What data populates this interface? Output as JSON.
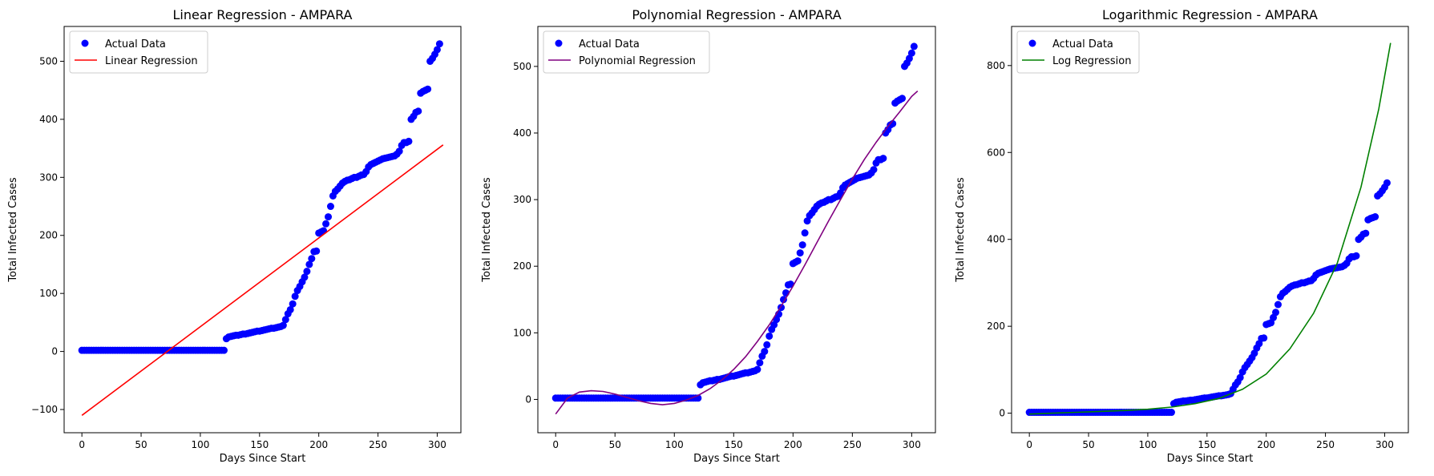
{
  "chart_data": [
    {
      "type": "scatter",
      "title": "Linear Regression - AMPARA",
      "xlabel": "Days Since Start",
      "ylabel": "Total Infected Cases",
      "xlim": [
        -15,
        320
      ],
      "ylim": [
        -140,
        560
      ],
      "xticks": [
        0,
        50,
        100,
        150,
        200,
        250,
        300
      ],
      "yticks": [
        -100,
        0,
        100,
        200,
        300,
        400,
        500
      ],
      "grid": false,
      "legend_placement": "top-left",
      "legend": [
        "Actual Data",
        "Linear Regression"
      ],
      "scatter_color": "#0000ff",
      "fit": {
        "kind": "linear",
        "color": "#ff0000",
        "points": [
          [
            0,
            -110
          ],
          [
            305,
            356
          ]
        ]
      }
    },
    {
      "type": "scatter",
      "title": "Polynomial Regression - AMPARA",
      "xlabel": "Days Since Start",
      "ylabel": "Total Infected Cases",
      "xlim": [
        -15,
        320
      ],
      "ylim": [
        -50,
        560
      ],
      "xticks": [
        0,
        50,
        100,
        150,
        200,
        250,
        300
      ],
      "yticks": [
        0,
        100,
        200,
        300,
        400,
        500
      ],
      "grid": false,
      "legend_placement": "top-left",
      "legend": [
        "Actual Data",
        "Polynomial Regression"
      ],
      "scatter_color": "#0000ff",
      "fit": {
        "kind": "polynomial",
        "color": "#800080",
        "points": [
          [
            0,
            -22
          ],
          [
            10,
            2
          ],
          [
            20,
            11
          ],
          [
            30,
            13
          ],
          [
            40,
            12
          ],
          [
            50,
            8
          ],
          [
            60,
            3
          ],
          [
            70,
            -2
          ],
          [
            80,
            -6
          ],
          [
            90,
            -8
          ],
          [
            100,
            -6
          ],
          [
            110,
            -1
          ],
          [
            120,
            6
          ],
          [
            130,
            16
          ],
          [
            140,
            29
          ],
          [
            150,
            45
          ],
          [
            160,
            64
          ],
          [
            170,
            87
          ],
          [
            180,
            112
          ],
          [
            190,
            140
          ],
          [
            200,
            170
          ],
          [
            210,
            202
          ],
          [
            220,
            235
          ],
          [
            230,
            268
          ],
          [
            240,
            300
          ],
          [
            250,
            331
          ],
          [
            260,
            360
          ],
          [
            270,
            386
          ],
          [
            280,
            410
          ],
          [
            290,
            432
          ],
          [
            300,
            455
          ],
          [
            305,
            463
          ]
        ]
      }
    },
    {
      "type": "scatter",
      "title": "Logarithmic Regression - AMPARA",
      "xlabel": "Days Since Start",
      "ylabel": "Total Infected Cases",
      "xlim": [
        -15,
        320
      ],
      "ylim": [
        -45,
        890
      ],
      "xticks": [
        0,
        50,
        100,
        150,
        200,
        250,
        300
      ],
      "yticks": [
        0,
        200,
        400,
        600,
        800
      ],
      "grid": false,
      "legend_placement": "top-left",
      "legend": [
        "Actual Data",
        "Log Regression"
      ],
      "scatter_color": "#0000ff",
      "fit": {
        "kind": "exponential",
        "color": "#008000",
        "points": [
          [
            0,
            -2
          ],
          [
            20,
            0
          ],
          [
            40,
            2
          ],
          [
            60,
            4
          ],
          [
            80,
            6
          ],
          [
            100,
            9
          ],
          [
            120,
            14
          ],
          [
            140,
            22
          ],
          [
            160,
            34
          ],
          [
            180,
            55
          ],
          [
            200,
            90
          ],
          [
            220,
            148
          ],
          [
            240,
            230
          ],
          [
            260,
            345
          ],
          [
            280,
            520
          ],
          [
            295,
            700
          ],
          [
            305,
            852
          ]
        ]
      }
    }
  ],
  "actual_data": {
    "days": [
      0,
      2,
      4,
      6,
      8,
      10,
      12,
      14,
      16,
      18,
      20,
      22,
      24,
      26,
      28,
      30,
      32,
      34,
      36,
      38,
      40,
      42,
      44,
      46,
      48,
      50,
      52,
      54,
      56,
      58,
      60,
      62,
      64,
      66,
      68,
      70,
      72,
      74,
      76,
      78,
      80,
      82,
      84,
      86,
      88,
      90,
      92,
      94,
      96,
      98,
      100,
      102,
      104,
      106,
      108,
      110,
      112,
      114,
      116,
      118,
      120,
      122,
      124,
      126,
      128,
      130,
      132,
      134,
      136,
      138,
      140,
      142,
      144,
      146,
      148,
      150,
      152,
      154,
      156,
      158,
      160,
      162,
      164,
      166,
      168,
      170,
      172,
      174,
      176,
      178,
      180,
      182,
      184,
      186,
      188,
      190,
      192,
      194,
      196,
      198,
      200,
      202,
      204,
      206,
      208,
      210,
      212,
      214,
      216,
      218,
      220,
      222,
      224,
      226,
      228,
      230,
      232,
      234,
      236,
      238,
      240,
      242,
      244,
      246,
      248,
      250,
      252,
      254,
      256,
      258,
      260,
      262,
      264,
      266,
      268,
      270,
      272,
      274,
      276,
      278,
      280,
      282,
      284,
      286,
      288,
      290,
      292,
      294,
      296,
      298,
      300,
      302,
      304,
      305
    ],
    "cases": [
      2,
      2,
      2,
      2,
      2,
      2,
      2,
      2,
      2,
      2,
      2,
      2,
      2,
      2,
      2,
      2,
      2,
      2,
      2,
      2,
      2,
      2,
      2,
      2,
      2,
      2,
      2,
      2,
      2,
      2,
      2,
      2,
      2,
      2,
      2,
      2,
      2,
      2,
      2,
      2,
      2,
      2,
      2,
      2,
      2,
      2,
      2,
      2,
      2,
      2,
      2,
      2,
      2,
      2,
      2,
      2,
      2,
      2,
      2,
      2,
      2,
      22,
      25,
      26,
      27,
      28,
      28,
      29,
      30,
      30,
      31,
      32,
      33,
      34,
      35,
      35,
      36,
      37,
      38,
      39,
      40,
      40,
      41,
      42,
      43,
      45,
      55,
      65,
      72,
      82,
      95,
      105,
      112,
      120,
      128,
      138,
      150,
      160,
      172,
      173,
      204,
      206,
      208,
      220,
      232,
      250,
      268,
      276,
      280,
      285,
      290,
      293,
      295,
      296,
      298,
      300,
      300,
      302,
      304,
      305,
      310,
      318,
      322,
      324,
      326,
      328,
      330,
      332,
      333,
      334,
      335,
      336,
      337,
      340,
      345,
      355,
      360,
      360,
      362,
      400,
      405,
      412,
      414,
      445,
      448,
      450,
      452,
      500,
      505,
      512,
      520,
      530
    ],
    "color": "#0000ff"
  }
}
